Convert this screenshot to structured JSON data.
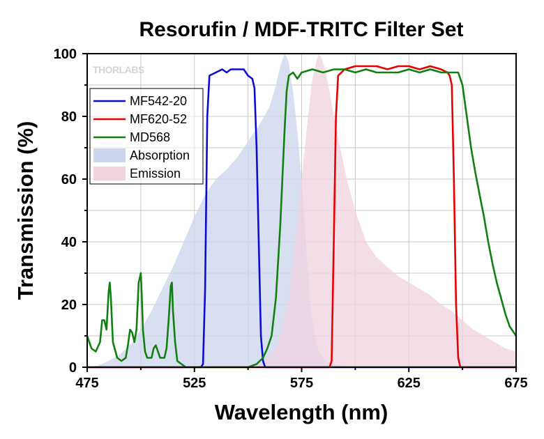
{
  "logo": "THORLABS",
  "chart_data": {
    "type": "line",
    "title": "Resorufin / MDF-TRITC Filter Set",
    "xlabel": "Wavelength (nm)",
    "ylabel": "Transmission (%)",
    "xlim": [
      475,
      675
    ],
    "ylim": [
      0,
      100
    ],
    "xticks": [
      475,
      525,
      575,
      625,
      675
    ],
    "yticks": [
      0,
      20,
      40,
      60,
      80,
      100
    ],
    "grid": true,
    "legend_position": "upper-left",
    "series": [
      {
        "name": "MF542-20",
        "kind": "line",
        "color": "#0b0bd6",
        "points": [
          [
            475,
            0
          ],
          [
            528,
            0
          ],
          [
            529,
            1
          ],
          [
            530,
            25
          ],
          [
            531,
            80
          ],
          [
            532,
            93
          ],
          [
            535,
            94
          ],
          [
            538,
            95
          ],
          [
            540,
            94
          ],
          [
            542,
            95
          ],
          [
            545,
            95
          ],
          [
            548,
            95
          ],
          [
            550,
            93
          ],
          [
            552,
            92
          ],
          [
            553,
            89
          ],
          [
            554,
            70
          ],
          [
            555,
            40
          ],
          [
            556,
            10
          ],
          [
            557,
            2
          ],
          [
            558,
            0
          ],
          [
            675,
            0
          ]
        ]
      },
      {
        "name": "MF620-52",
        "kind": "line",
        "color": "#e80000",
        "points": [
          [
            475,
            0
          ],
          [
            588,
            0
          ],
          [
            589,
            2
          ],
          [
            590,
            40
          ],
          [
            591,
            80
          ],
          [
            592,
            93
          ],
          [
            595,
            95
          ],
          [
            600,
            96
          ],
          [
            605,
            96
          ],
          [
            610,
            96
          ],
          [
            615,
            95
          ],
          [
            620,
            96
          ],
          [
            625,
            96
          ],
          [
            630,
            95
          ],
          [
            635,
            96
          ],
          [
            640,
            95
          ],
          [
            643,
            94
          ],
          [
            644,
            93
          ],
          [
            645,
            90
          ],
          [
            646,
            60
          ],
          [
            647,
            20
          ],
          [
            648,
            3
          ],
          [
            649,
            0
          ],
          [
            675,
            0
          ]
        ]
      },
      {
        "name": "MD568",
        "kind": "line",
        "color": "#108010",
        "points": [
          [
            475,
            10
          ],
          [
            477,
            6
          ],
          [
            479,
            5
          ],
          [
            481,
            8
          ],
          [
            482,
            15
          ],
          [
            483,
            15
          ],
          [
            484,
            12
          ],
          [
            485,
            24
          ],
          [
            485.5,
            27
          ],
          [
            486,
            23
          ],
          [
            487,
            8
          ],
          [
            489,
            3
          ],
          [
            491,
            2
          ],
          [
            493,
            3
          ],
          [
            494,
            7
          ],
          [
            495,
            12
          ],
          [
            496,
            11
          ],
          [
            497,
            8
          ],
          [
            498,
            12
          ],
          [
            499,
            27
          ],
          [
            500,
            30
          ],
          [
            500.5,
            22
          ],
          [
            501,
            12
          ],
          [
            502,
            5
          ],
          [
            503,
            3
          ],
          [
            505,
            3
          ],
          [
            506,
            6
          ],
          [
            507,
            7
          ],
          [
            508,
            5
          ],
          [
            509,
            3
          ],
          [
            511,
            3
          ],
          [
            512,
            6
          ],
          [
            513,
            15
          ],
          [
            514,
            26
          ],
          [
            514.5,
            27
          ],
          [
            515,
            18
          ],
          [
            516,
            8
          ],
          [
            517,
            2
          ],
          [
            519,
            1
          ],
          [
            521,
            0
          ],
          [
            550,
            0
          ],
          [
            554,
            1
          ],
          [
            557,
            3
          ],
          [
            559,
            6
          ],
          [
            561,
            10
          ],
          [
            563,
            22
          ],
          [
            565,
            45
          ],
          [
            567,
            75
          ],
          [
            568,
            88
          ],
          [
            569,
            93
          ],
          [
            571,
            94
          ],
          [
            573,
            92
          ],
          [
            575,
            94
          ],
          [
            580,
            95
          ],
          [
            585,
            94
          ],
          [
            590,
            95
          ],
          [
            595,
            95
          ],
          [
            600,
            94
          ],
          [
            605,
            95
          ],
          [
            610,
            94
          ],
          [
            615,
            94
          ],
          [
            620,
            94
          ],
          [
            625,
            95
          ],
          [
            630,
            94
          ],
          [
            635,
            95
          ],
          [
            640,
            94
          ],
          [
            645,
            94
          ],
          [
            648,
            94
          ],
          [
            650,
            90
          ],
          [
            652,
            80
          ],
          [
            654,
            70
          ],
          [
            656,
            62
          ],
          [
            658,
            55
          ],
          [
            660,
            48
          ],
          [
            662,
            40
          ],
          [
            664,
            33
          ],
          [
            666,
            27
          ],
          [
            668,
            22
          ],
          [
            670,
            17
          ],
          [
            672,
            13
          ],
          [
            675,
            10
          ]
        ]
      },
      {
        "name": "Absorption",
        "kind": "area",
        "color": "#ccd6ec",
        "points": [
          [
            475,
            0
          ],
          [
            480,
            0.5
          ],
          [
            485,
            2
          ],
          [
            490,
            4
          ],
          [
            495,
            7
          ],
          [
            500,
            12
          ],
          [
            505,
            18
          ],
          [
            510,
            25
          ],
          [
            515,
            32
          ],
          [
            520,
            40
          ],
          [
            525,
            48
          ],
          [
            530,
            55
          ],
          [
            535,
            60
          ],
          [
            540,
            63
          ],
          [
            545,
            67
          ],
          [
            550,
            72
          ],
          [
            555,
            77
          ],
          [
            560,
            83
          ],
          [
            563,
            90
          ],
          [
            565,
            96
          ],
          [
            567,
            100
          ],
          [
            568,
            99
          ],
          [
            569,
            97
          ],
          [
            571,
            88
          ],
          [
            573,
            75
          ],
          [
            575,
            60
          ],
          [
            577,
            40
          ],
          [
            579,
            20
          ],
          [
            581,
            10
          ],
          [
            583,
            5
          ],
          [
            586,
            2
          ],
          [
            590,
            1
          ],
          [
            600,
            0
          ],
          [
            675,
            0
          ]
        ]
      },
      {
        "name": "Emission",
        "kind": "area",
        "color": "#f0d4e0",
        "points": [
          [
            475,
            0
          ],
          [
            545,
            0
          ],
          [
            550,
            0.5
          ],
          [
            555,
            1
          ],
          [
            560,
            3
          ],
          [
            563,
            6
          ],
          [
            566,
            12
          ],
          [
            569,
            22
          ],
          [
            572,
            40
          ],
          [
            575,
            60
          ],
          [
            578,
            80
          ],
          [
            580,
            92
          ],
          [
            582,
            98
          ],
          [
            583,
            100
          ],
          [
            584,
            99
          ],
          [
            586,
            95
          ],
          [
            588,
            88
          ],
          [
            590,
            80
          ],
          [
            593,
            70
          ],
          [
            596,
            60
          ],
          [
            600,
            50
          ],
          [
            605,
            40
          ],
          [
            610,
            35
          ],
          [
            615,
            32
          ],
          [
            620,
            29
          ],
          [
            625,
            27
          ],
          [
            630,
            25
          ],
          [
            635,
            23
          ],
          [
            640,
            20
          ],
          [
            645,
            18
          ],
          [
            650,
            15
          ],
          [
            655,
            12
          ],
          [
            660,
            10
          ],
          [
            665,
            8
          ],
          [
            670,
            6
          ],
          [
            675,
            5
          ]
        ]
      }
    ]
  }
}
